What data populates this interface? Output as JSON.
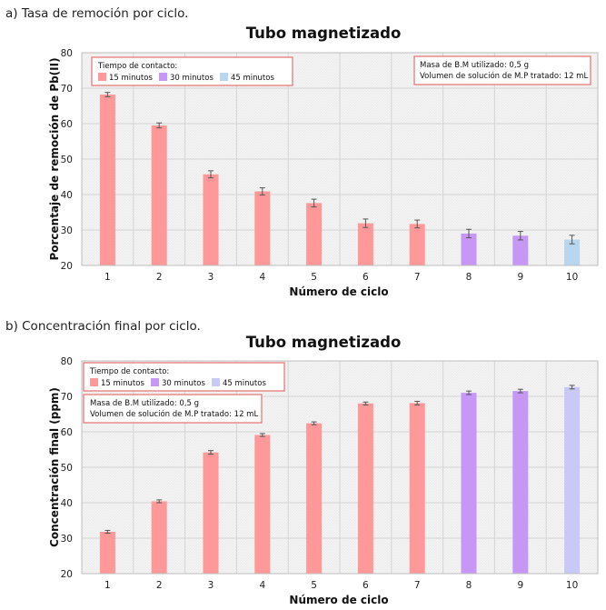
{
  "colors": {
    "c15": "#ff9999",
    "c30": "#c697f5",
    "c45_a": "#b8d6ee",
    "c45_b": "#c9c9f7",
    "box_border": "#e77b7b"
  },
  "chart_data": [
    {
      "type": "bar",
      "caption": "a) Tasa de remoción por ciclo.",
      "title": "Tubo magnetizado",
      "xlabel": "Número de ciclo",
      "ylabel": "Porcentaje de remoción de Pb(II)",
      "ylim": [
        20,
        80
      ],
      "yticks": [
        "20",
        "30",
        "40",
        "50",
        "60",
        "70",
        "80"
      ],
      "categories": [
        "1",
        "2",
        "3",
        "4",
        "5",
        "6",
        "7",
        "8",
        "9",
        "10"
      ],
      "values": [
        68.2,
        59.5,
        45.7,
        40.9,
        37.6,
        31.9,
        31.7,
        29.0,
        28.4,
        27.3
      ],
      "errors": [
        0.6,
        0.7,
        1.0,
        1.0,
        1.1,
        1.2,
        1.1,
        1.2,
        1.2,
        1.2
      ],
      "groups": [
        0,
        0,
        0,
        0,
        0,
        0,
        0,
        1,
        1,
        2
      ],
      "legend": {
        "title": "Tiempo de contacto:",
        "entries": [
          {
            "label": "15 minutos",
            "color": "#ff9999"
          },
          {
            "label": "30 minutos",
            "color": "#c697f5"
          },
          {
            "label": "45 minutos",
            "color": "#b8d6ee"
          }
        ]
      },
      "note": [
        "Masa de B.M utilizado: 0,5 g",
        "Volumen de solución de M.P tratado: 12 mL"
      ]
    },
    {
      "type": "bar",
      "caption": "b) Concentración final por ciclo.",
      "title": "Tubo magnetizado",
      "xlabel": "Número de ciclo",
      "ylabel": "Concentración final (ppm)",
      "ylim": [
        20,
        80
      ],
      "yticks": [
        "20",
        "30",
        "40",
        "50",
        "60",
        "70",
        "80"
      ],
      "categories": [
        "1",
        "2",
        "3",
        "4",
        "5",
        "6",
        "7",
        "8",
        "9",
        "10"
      ],
      "values": [
        31.8,
        40.4,
        54.2,
        59.1,
        62.4,
        68.0,
        68.1,
        71.0,
        71.5,
        72.6
      ],
      "errors": [
        0.4,
        0.4,
        0.5,
        0.4,
        0.4,
        0.4,
        0.5,
        0.5,
        0.5,
        0.5
      ],
      "groups": [
        0,
        0,
        0,
        0,
        0,
        0,
        0,
        1,
        1,
        2
      ],
      "legend": {
        "title": "Tiempo de contacto:",
        "entries": [
          {
            "label": "15 minutos",
            "color": "#ff9999"
          },
          {
            "label": "30 minutos",
            "color": "#c697f5"
          },
          {
            "label": "45 minutos",
            "color": "#c9c9f7"
          }
        ]
      },
      "note": [
        "Masa de B.M utilizado: 0,5 g",
        "Volumen de solución de M.P tratado: 12 mL"
      ]
    }
  ]
}
